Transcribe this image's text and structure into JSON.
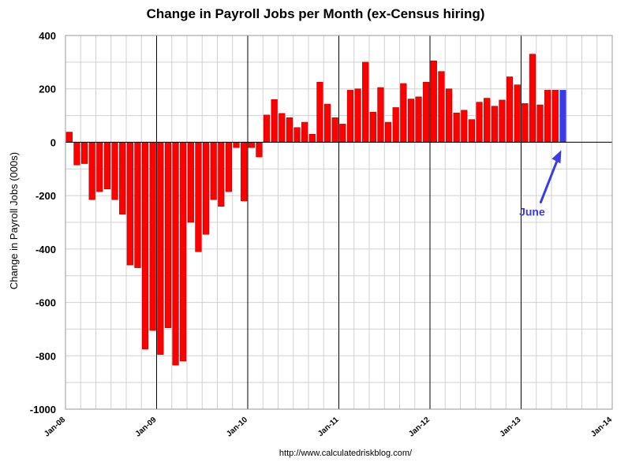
{
  "colors": {
    "bar": "#ff0000",
    "bar_edge": "#b00000",
    "highlight": "#3a3ae6",
    "grid_minor": "#d0d0d0",
    "grid_major": "#000000"
  },
  "chart_data": {
    "type": "bar",
    "title": "Change in Payroll Jobs per Month (ex-Census hiring)",
    "xlabel": "",
    "ylabel": "Change in Payroll Jobs (000s)",
    "ylim": [
      -1000,
      400
    ],
    "yticks": [
      400,
      200,
      0,
      -200,
      -400,
      -600,
      -800,
      -1000
    ],
    "xlim_months": [
      0,
      72
    ],
    "xticks": [
      {
        "label": "Jan-08",
        "month": 0
      },
      {
        "label": "Jan-09",
        "month": 12
      },
      {
        "label": "Jan-10",
        "month": 24
      },
      {
        "label": "Jan-11",
        "month": 36
      },
      {
        "label": "Jan-12",
        "month": 48
      },
      {
        "label": "Jan-13",
        "month": 60
      },
      {
        "label": "Jan-14",
        "month": 72
      }
    ],
    "series": [
      {
        "name": "Change in Payroll Jobs",
        "start": "Jan-08",
        "values": [
          38,
          -85,
          -80,
          -215,
          -185,
          -175,
          -215,
          -270,
          -460,
          -470,
          -775,
          -705,
          -795,
          -695,
          -835,
          -820,
          -300,
          -410,
          -345,
          -215,
          -240,
          -185,
          -20,
          -220,
          -20,
          -55,
          102,
          160,
          108,
          92,
          55,
          75,
          30,
          225,
          143,
          92,
          68,
          195,
          200,
          300,
          113,
          205,
          75,
          130,
          220,
          162,
          170,
          225,
          305,
          265,
          200,
          110,
          120,
          85,
          150,
          165,
          135,
          158,
          245,
          215,
          145,
          330,
          140,
          195,
          195,
          195
        ]
      }
    ],
    "highlight": {
      "label": "June",
      "index": 65
    }
  },
  "source_text": "http://www.calculatedriskblog.com/"
}
